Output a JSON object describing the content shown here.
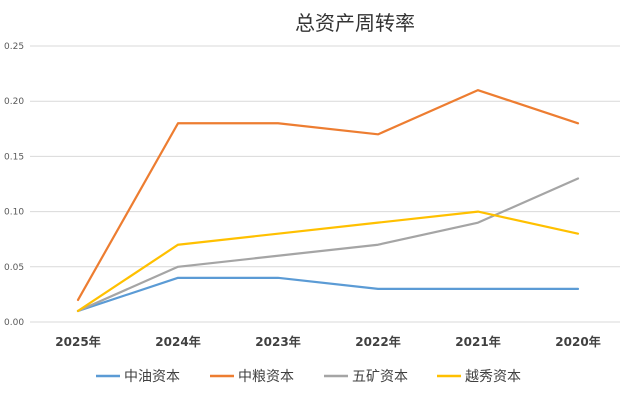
{
  "chart_data": {
    "type": "line",
    "title": "总资产周转率",
    "xlabel": "",
    "ylabel": "",
    "categories": [
      "2025年",
      "2024年",
      "2023年",
      "2022年",
      "2021年",
      "2020年"
    ],
    "ylim": [
      0,
      0.25
    ],
    "yticks": [
      "0.00",
      "0.05",
      "0.10",
      "0.15",
      "0.20",
      "0.25"
    ],
    "grid": true,
    "legend_position": "bottom",
    "series": [
      {
        "name": "中油资本",
        "color": "#5b9bd5",
        "values": [
          0.01,
          0.04,
          0.04,
          0.03,
          0.03,
          0.03
        ]
      },
      {
        "name": "中粮资本",
        "color": "#ed7d31",
        "values": [
          0.02,
          0.18,
          0.18,
          0.17,
          0.21,
          0.18
        ]
      },
      {
        "name": "五矿资本",
        "color": "#a5a5a5",
        "values": [
          0.01,
          0.05,
          0.06,
          0.07,
          0.09,
          0.13
        ]
      },
      {
        "name": "越秀资本",
        "color": "#ffc000",
        "values": [
          0.01,
          0.07,
          0.08,
          0.09,
          0.1,
          0.08
        ]
      }
    ]
  }
}
